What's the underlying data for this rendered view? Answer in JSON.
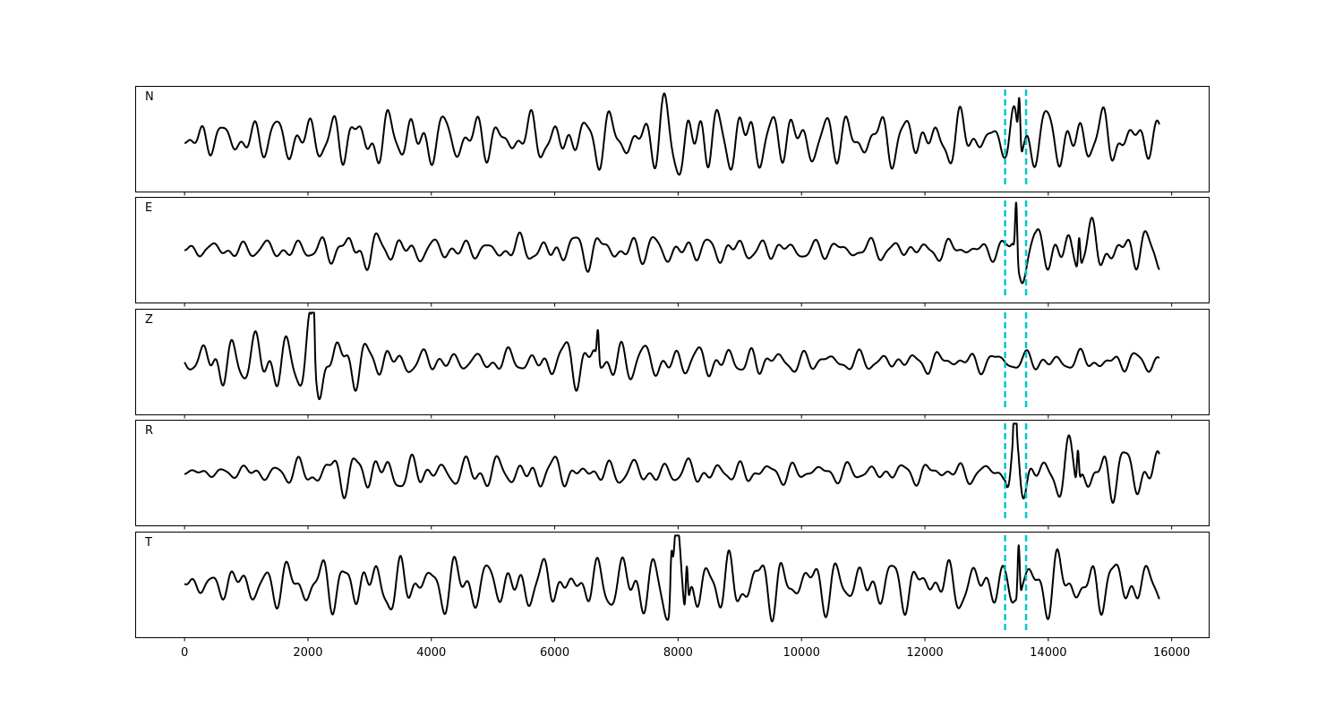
{
  "chart_data": {
    "type": "line",
    "title": "",
    "xlabel": "",
    "ylabel": "",
    "xlim": [
      -800,
      16600
    ],
    "x_ticks": [
      0,
      2000,
      4000,
      6000,
      8000,
      10000,
      12000,
      14000,
      16000
    ],
    "x_tick_labels": [
      "0",
      "2000",
      "4000",
      "6000",
      "8000",
      "10000",
      "12000",
      "14000",
      "16000"
    ],
    "x_range": [
      0,
      15800
    ],
    "grid": false,
    "y_ticks_shown": false,
    "line_color": "#000000",
    "marker_color": "#00c8c8",
    "markers_x": [
      13300,
      13640
    ],
    "panels": [
      {
        "label": "N",
        "envelope": [
          [
            0,
            0.3
          ],
          [
            800,
            0.35
          ],
          [
            2300,
            0.55
          ],
          [
            3300,
            0.55
          ],
          [
            4000,
            0.5
          ],
          [
            5000,
            0.45
          ],
          [
            6000,
            0.45
          ],
          [
            6800,
            0.5
          ],
          [
            7500,
            0.55
          ],
          [
            7900,
            0.95
          ],
          [
            8150,
            1.0
          ],
          [
            8600,
            0.65
          ],
          [
            9200,
            0.6
          ],
          [
            10000,
            0.55
          ],
          [
            11000,
            0.5
          ],
          [
            12000,
            0.45
          ],
          [
            12700,
            0.55
          ],
          [
            13300,
            0.4
          ],
          [
            13550,
            0.85
          ],
          [
            13800,
            0.65
          ],
          [
            14500,
            0.55
          ],
          [
            15800,
            0.45
          ]
        ],
        "pulses": [
          {
            "x": 13530,
            "a": 0.85
          }
        ]
      },
      {
        "label": "E",
        "envelope": [
          [
            0,
            0.05
          ],
          [
            300,
            0.15
          ],
          [
            1500,
            0.2
          ],
          [
            2500,
            0.3
          ],
          [
            2700,
            0.45
          ],
          [
            3500,
            0.25
          ],
          [
            4500,
            0.2
          ],
          [
            6000,
            0.3
          ],
          [
            6800,
            0.35
          ],
          [
            7500,
            0.3
          ],
          [
            8500,
            0.25
          ],
          [
            10000,
            0.2
          ],
          [
            12000,
            0.2
          ],
          [
            13300,
            0.2
          ],
          [
            13500,
            1.0
          ],
          [
            13800,
            0.4
          ],
          [
            14500,
            0.55
          ],
          [
            15000,
            0.45
          ],
          [
            15800,
            0.45
          ]
        ],
        "pulses": [
          {
            "x": 13480,
            "a": 0.95
          },
          {
            "x": 14500,
            "a": 0.55
          }
        ]
      },
      {
        "label": "Z",
        "envelope": [
          [
            0,
            0.1
          ],
          [
            450,
            0.5
          ],
          [
            1300,
            0.6
          ],
          [
            2100,
            0.95
          ],
          [
            2600,
            0.55
          ],
          [
            3500,
            0.25
          ],
          [
            5000,
            0.2
          ],
          [
            6000,
            0.3
          ],
          [
            6700,
            0.7
          ],
          [
            7200,
            0.4
          ],
          [
            8200,
            0.3
          ],
          [
            9300,
            0.3
          ],
          [
            10000,
            0.2
          ],
          [
            12000,
            0.2
          ],
          [
            13500,
            0.2
          ],
          [
            15000,
            0.2
          ],
          [
            15800,
            0.2
          ]
        ],
        "pulses": [
          {
            "x": 2090,
            "a": 0.95
          },
          {
            "x": 6700,
            "a": 0.55
          }
        ]
      },
      {
        "label": "R",
        "envelope": [
          [
            0,
            0.05
          ],
          [
            500,
            0.1
          ],
          [
            1500,
            0.2
          ],
          [
            2500,
            0.4
          ],
          [
            2700,
            0.45
          ],
          [
            4000,
            0.3
          ],
          [
            6000,
            0.3
          ],
          [
            7000,
            0.25
          ],
          [
            8000,
            0.25
          ],
          [
            10000,
            0.2
          ],
          [
            12000,
            0.2
          ],
          [
            13300,
            0.2
          ],
          [
            13450,
            1.0
          ],
          [
            13800,
            0.55
          ],
          [
            14500,
            0.6
          ],
          [
            15500,
            0.5
          ],
          [
            15800,
            0.5
          ]
        ],
        "pulses": [
          {
            "x": 13460,
            "a": 1.0
          },
          {
            "x": 14480,
            "a": 0.6
          }
        ]
      },
      {
        "label": "T",
        "envelope": [
          [
            0,
            0.15
          ],
          [
            800,
            0.35
          ],
          [
            2300,
            0.55
          ],
          [
            3300,
            0.55
          ],
          [
            4500,
            0.5
          ],
          [
            6000,
            0.45
          ],
          [
            7000,
            0.5
          ],
          [
            7850,
            1.0
          ],
          [
            8200,
            0.95
          ],
          [
            8600,
            0.6
          ],
          [
            9200,
            0.6
          ],
          [
            10000,
            0.55
          ],
          [
            11000,
            0.5
          ],
          [
            12000,
            0.45
          ],
          [
            12700,
            0.5
          ],
          [
            13300,
            0.4
          ],
          [
            13550,
            1.0
          ],
          [
            13800,
            0.65
          ],
          [
            14500,
            0.55
          ],
          [
            15800,
            0.45
          ]
        ],
        "pulses": [
          {
            "x": 13520,
            "a": 0.95
          },
          {
            "x": 7890,
            "a": 0.7
          },
          {
            "x": 8140,
            "a": 0.8
          }
        ]
      }
    ]
  }
}
